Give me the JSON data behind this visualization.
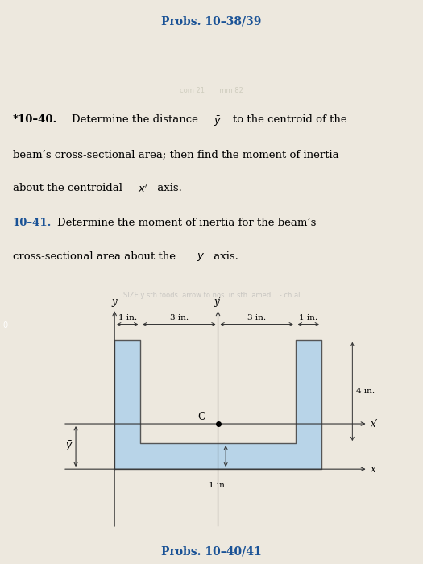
{
  "title_top": "Probs. 10–38/39",
  "title_bottom": "Probs. 10–40/41",
  "bg_color": "#ede8de",
  "shape_fill": "#b8d4e8",
  "shape_edge": "#555555",
  "axis_color": "#333333",
  "dim_color": "#333333",
  "text_color_blue": "#1a5296",
  "sidebar_color": "#2060a0",
  "dim_label_1in_left": "1 in.",
  "dim_label_3in_left": "3 in.",
  "dim_label_3in_right": "3 in.",
  "dim_label_1in_right": "1 in.",
  "dim_label_4in": "4 in.",
  "dim_label_1in_bot": "1 in.",
  "centroid_label": "C",
  "x_prime_label": "x′",
  "x_label": "x",
  "y_label": "y",
  "y_prime_label": "y′"
}
